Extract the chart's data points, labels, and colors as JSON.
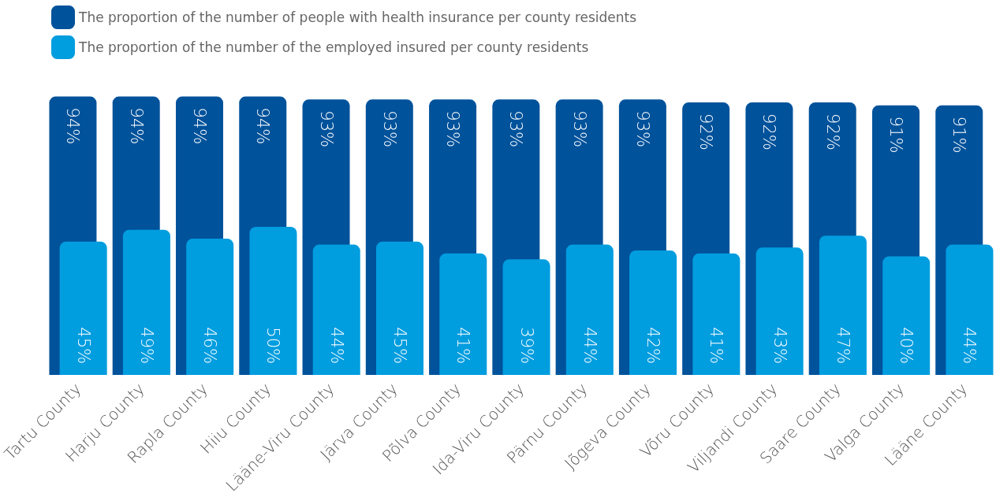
{
  "chart_data": {
    "type": "bar",
    "categories": [
      "Tartu County",
      "Harju County",
      "Rapla County",
      "Hiiu County",
      "Lääne-Viru County",
      "Järva County",
      "Põlva County",
      "Ida-Viru County",
      "Pärnu County",
      "Jõgeva County",
      "Võru County",
      "Viljandi County",
      "Saare County",
      "Valga County",
      "Lääne County"
    ],
    "series": [
      {
        "name": "The proportion of the number of people with health insurance per county residents",
        "color": "#00529b",
        "values": [
          94,
          94,
          94,
          94,
          93,
          93,
          93,
          93,
          93,
          93,
          92,
          92,
          92,
          91,
          91
        ],
        "value_labels": [
          "94%",
          "94%",
          "94%",
          "94%",
          "93%",
          "93%",
          "93%",
          "93%",
          "93%",
          "93%",
          "92%",
          "92%",
          "92%",
          "91%",
          "91%"
        ]
      },
      {
        "name": "The proportion of the number of the employed insured per county residents",
        "color": "#009ddf",
        "values": [
          45,
          49,
          46,
          50,
          44,
          45,
          41,
          39,
          44,
          42,
          41,
          43,
          47,
          40,
          44
        ],
        "value_labels": [
          "45%",
          "49%",
          "46%",
          "50%",
          "44%",
          "45%",
          "41%",
          "39%",
          "44%",
          "42%",
          "41%",
          "43%",
          "47%",
          "40%",
          "44%"
        ]
      }
    ],
    "legend": "top left",
    "tick_labels": "x"
  }
}
